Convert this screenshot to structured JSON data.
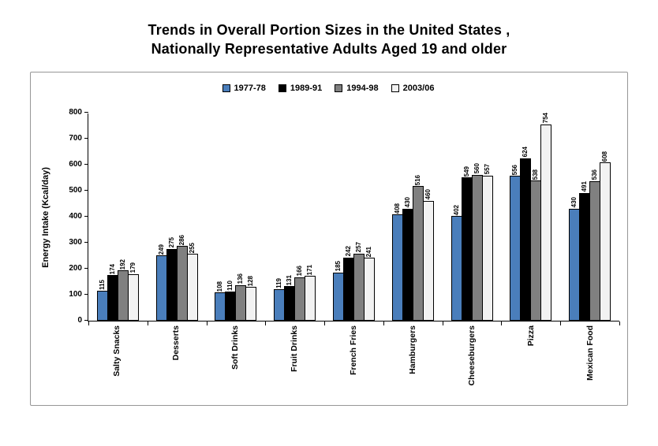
{
  "title": {
    "line1": "Trends in Overall Portion Sizes in the United States ,",
    "line2": "Nationally Representative Adults Aged 19 and older"
  },
  "chart_data": {
    "type": "bar",
    "title": "Trends in Overall Portion Sizes in the United States, Nationally Representative Adults Aged 19 and older",
    "ylabel": "Energy Intake (Kcal/day)",
    "ylim": [
      0,
      800
    ],
    "ytick_step": 100,
    "grid": false,
    "legend_position": "top",
    "categories": [
      "Salty Snacks",
      "Desserts",
      "Soft Drinks",
      "Fruit Drinks",
      "French Fries",
      "Hamburgers",
      "Cheeseburgers",
      "Pizza",
      "Mexican Food"
    ],
    "series": [
      {
        "name": "1977-78",
        "color": "#4A7EBB",
        "values": [
          115,
          249,
          108,
          119,
          185,
          408,
          402,
          556,
          430
        ]
      },
      {
        "name": "1989-91",
        "color": "#000000",
        "values": [
          174,
          275,
          110,
          131,
          242,
          430,
          549,
          624,
          491
        ]
      },
      {
        "name": "1994-98",
        "color": "#808080",
        "values": [
          192,
          286,
          136,
          166,
          257,
          516,
          560,
          538,
          536
        ]
      },
      {
        "name": "2003/06",
        "color": "#F2F2F2",
        "values": [
          179,
          255,
          128,
          171,
          241,
          460,
          557,
          754,
          608
        ]
      }
    ]
  }
}
